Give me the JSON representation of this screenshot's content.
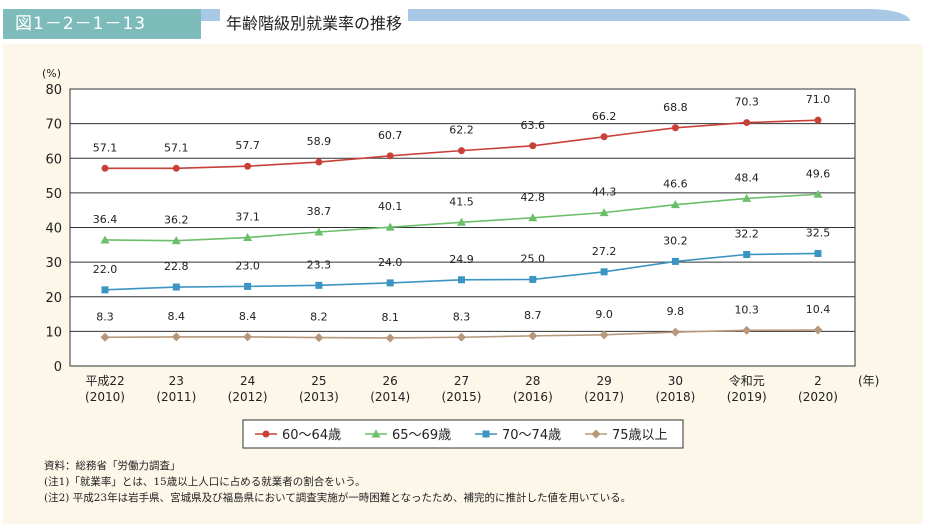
{
  "header": {
    "figure_number": "図1－2－1－13",
    "title": "年齢階級別就業率の推移"
  },
  "chart_data": {
    "type": "line",
    "title": "年齢階級別就業率の推移",
    "ylabel": "(%)",
    "xlabel": "(年)",
    "ylim": [
      0,
      80
    ],
    "yticks": [
      0,
      10,
      20,
      30,
      40,
      50,
      60,
      70,
      80
    ],
    "grid": true,
    "legend": "bottom",
    "categories": [
      [
        "平成22",
        "(2010)"
      ],
      [
        "23",
        "(2011)"
      ],
      [
        "24",
        "(2012)"
      ],
      [
        "25",
        "(2013)"
      ],
      [
        "26",
        "(2014)"
      ],
      [
        "27",
        "(2015)"
      ],
      [
        "28",
        "(2016)"
      ],
      [
        "29",
        "(2017)"
      ],
      [
        "30",
        "(2018)"
      ],
      [
        "令和元",
        "(2019)"
      ],
      [
        "2",
        "(2020)"
      ]
    ],
    "series": [
      {
        "name": "60～64歳",
        "color": "#c9403a",
        "marker": "circle",
        "values": [
          57.1,
          57.1,
          57.7,
          58.9,
          60.7,
          62.2,
          63.6,
          66.2,
          68.8,
          70.3,
          71.0
        ]
      },
      {
        "name": "65～69歳",
        "color": "#6cbf6a",
        "marker": "triangle",
        "values": [
          36.4,
          36.2,
          37.1,
          38.7,
          40.1,
          41.5,
          42.8,
          44.3,
          46.6,
          48.4,
          49.6
        ]
      },
      {
        "name": "70～74歳",
        "color": "#3b94c2",
        "marker": "square",
        "values": [
          22.0,
          22.8,
          23.0,
          23.3,
          24.0,
          24.9,
          25.0,
          27.2,
          30.2,
          32.2,
          32.5
        ]
      },
      {
        "name": "75歳以上",
        "color": "#b8987a",
        "marker": "diamond",
        "values": [
          8.3,
          8.4,
          8.4,
          8.2,
          8.1,
          8.3,
          8.7,
          9.0,
          9.8,
          10.3,
          10.4
        ]
      }
    ]
  },
  "notes": {
    "source": "資料：総務省「労働力調査」",
    "note1": "(注1)「就業率」とは、15歳以上人口に占める就業者の割合をいう。",
    "note2": "(注2) 平成23年は岩手県、宮城県及び福島県において調査実施が一時困難となったため、補完的に推計した値を用いている。"
  }
}
